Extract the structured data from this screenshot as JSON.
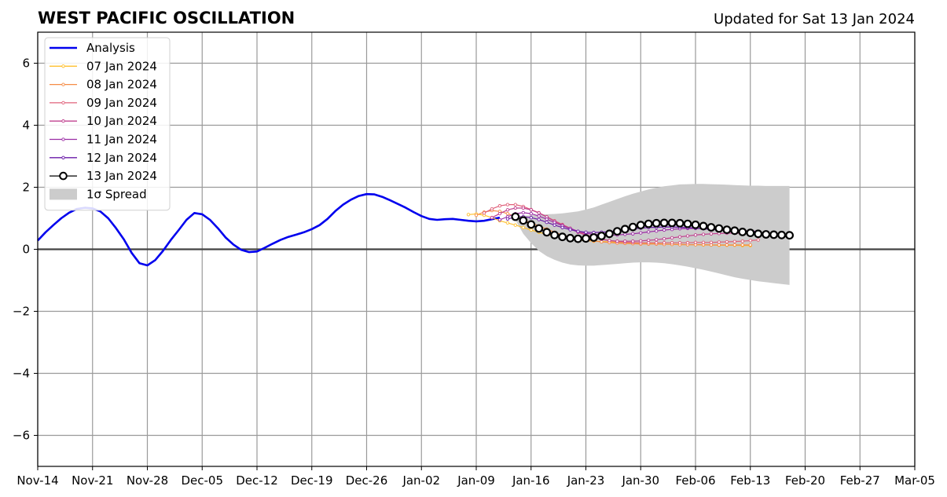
{
  "chart_data": {
    "type": "line",
    "title": "WEST PACIFIC OSCILLATION",
    "subtitle": "Updated for Sat 13 Jan 2024",
    "xlabel": "",
    "ylabel": "",
    "xlim": [
      0,
      112
    ],
    "ylim": [
      -7,
      7
    ],
    "x_ticks": [
      0,
      7,
      14,
      21,
      28,
      35,
      42,
      49,
      56,
      63,
      70,
      77,
      84,
      91,
      98,
      105,
      112
    ],
    "x_tick_labels": [
      "Nov-14",
      "Nov-21",
      "Nov-28",
      "Dec-05",
      "Dec-12",
      "Dec-19",
      "Dec-26",
      "Jan-02",
      "Jan-09",
      "Jan-16",
      "Jan-23",
      "Jan-30",
      "Feb-06",
      "Feb-13",
      "Feb-20",
      "Feb-27",
      "Mar-05"
    ],
    "y_ticks": [
      -6,
      -4,
      -2,
      0,
      2,
      4,
      6
    ],
    "y_tick_labels": [
      "−6",
      "−4",
      "−2",
      "0",
      "2",
      "4",
      "6"
    ],
    "grid": true,
    "zero_line": true,
    "legend_position": "top-left",
    "analysis": {
      "name": "Analysis",
      "color": "#0000ee",
      "x": [
        0,
        1,
        2,
        3,
        4,
        5,
        6,
        7,
        8,
        9,
        10,
        11,
        12,
        13,
        14,
        15,
        16,
        17,
        18,
        19,
        20,
        21,
        22,
        23,
        24,
        25,
        26,
        27,
        28,
        29,
        30,
        31,
        32,
        33,
        34,
        35,
        36,
        37,
        38,
        39,
        40,
        41,
        42,
        43,
        44,
        45,
        46,
        47,
        48,
        49,
        50,
        51,
        52,
        53,
        54,
        55,
        56,
        57,
        58,
        59
      ],
      "y": [
        0.28,
        0.55,
        0.78,
        1.0,
        1.18,
        1.3,
        1.34,
        1.32,
        1.22,
        1.0,
        0.68,
        0.32,
        -0.12,
        -0.45,
        -0.52,
        -0.35,
        -0.05,
        0.3,
        0.62,
        0.95,
        1.17,
        1.13,
        0.95,
        0.68,
        0.38,
        0.15,
        -0.02,
        -0.09,
        -0.07,
        0.05,
        0.18,
        0.3,
        0.4,
        0.47,
        0.55,
        0.65,
        0.78,
        0.98,
        1.23,
        1.44,
        1.6,
        1.72,
        1.78,
        1.77,
        1.69,
        1.58,
        1.46,
        1.34,
        1.2,
        1.07,
        0.98,
        0.95,
        0.97,
        0.98,
        0.95,
        0.92,
        0.9,
        0.92,
        0.97,
        1.02
      ]
    },
    "forecasts": [
      {
        "name": "07 Jan 2024",
        "color": "#ffc02e",
        "start": 55,
        "values": [
          1.12,
          1.14,
          1.1,
          1.02,
          0.92,
          0.85,
          0.78,
          0.7,
          0.62,
          0.55,
          0.48,
          0.42,
          0.38,
          0.33,
          0.3,
          0.28,
          0.26,
          0.25,
          0.24,
          0.23,
          0.22,
          0.21,
          0.2,
          0.19,
          0.18,
          0.17,
          0.16,
          0.16,
          0.15,
          0.15,
          0.14,
          0.14,
          0.13,
          0.13,
          0.13,
          0.12,
          0.12
        ]
      },
      {
        "name": "08 Jan 2024",
        "color": "#f58c45",
        "start": 56,
        "values": [
          1.1,
          1.2,
          1.25,
          1.22,
          1.15,
          1.05,
          0.95,
          0.85,
          0.75,
          0.65,
          0.55,
          0.46,
          0.4,
          0.35,
          0.3,
          0.27,
          0.24,
          0.22,
          0.2,
          0.19,
          0.18,
          0.17,
          0.17,
          0.17,
          0.16,
          0.16,
          0.15,
          0.15,
          0.15,
          0.15,
          0.14,
          0.14,
          0.14,
          0.14,
          0.14,
          0.14
        ]
      },
      {
        "name": "09 Jan 2024",
        "color": "#e0607a",
        "start": 57,
        "values": [
          1.17,
          1.3,
          1.4,
          1.44,
          1.44,
          1.38,
          1.28,
          1.18,
          1.05,
          0.92,
          0.8,
          0.68,
          0.57,
          0.47,
          0.39,
          0.33,
          0.28,
          0.25,
          0.23,
          0.22,
          0.21,
          0.21,
          0.21,
          0.21,
          0.21,
          0.21,
          0.21,
          0.22,
          0.22,
          0.22,
          0.23,
          0.24,
          0.25,
          0.26,
          0.28,
          0.3
        ]
      },
      {
        "name": "10 Jan 2024",
        "color": "#c0408f",
        "start": 58,
        "values": [
          1.02,
          1.15,
          1.27,
          1.33,
          1.33,
          1.27,
          1.17,
          1.04,
          0.9,
          0.78,
          0.66,
          0.55,
          0.45,
          0.38,
          0.32,
          0.28,
          0.26,
          0.26,
          0.26,
          0.27,
          0.29,
          0.31,
          0.34,
          0.37,
          0.4,
          0.43,
          0.46,
          0.48,
          0.5,
          0.51,
          0.52,
          0.52,
          0.52,
          0.52,
          0.51
        ]
      },
      {
        "name": "11 Jan 2024",
        "color": "#9b2ca5",
        "start": 59,
        "values": [
          0.95,
          1.05,
          1.15,
          1.18,
          1.15,
          1.07,
          0.97,
          0.86,
          0.76,
          0.67,
          0.58,
          0.52,
          0.48,
          0.46,
          0.45,
          0.46,
          0.48,
          0.5,
          0.53,
          0.56,
          0.59,
          0.62,
          0.64,
          0.66,
          0.67,
          0.67,
          0.67,
          0.66,
          0.65,
          0.63,
          0.62,
          0.6,
          0.59,
          0.58
        ]
      },
      {
        "name": "12 Jan 2024",
        "color": "#6a1aa8",
        "start": 60,
        "values": [
          0.98,
          1.03,
          1.05,
          1.02,
          0.96,
          0.87,
          0.78,
          0.7,
          0.63,
          0.58,
          0.55,
          0.54,
          0.55,
          0.57,
          0.6,
          0.63,
          0.66,
          0.68,
          0.7,
          0.71,
          0.72,
          0.72,
          0.71,
          0.7,
          0.68,
          0.66,
          0.64,
          0.62,
          0.6,
          0.58,
          0.56,
          0.55,
          0.54
        ]
      },
      {
        "name": "13 Jan 2024",
        "color": "#000000",
        "start": 61,
        "values": [
          1.05,
          0.93,
          0.8,
          0.67,
          0.55,
          0.46,
          0.4,
          0.36,
          0.34,
          0.35,
          0.38,
          0.43,
          0.5,
          0.58,
          0.65,
          0.72,
          0.78,
          0.82,
          0.84,
          0.85,
          0.85,
          0.84,
          0.82,
          0.79,
          0.75,
          0.71,
          0.67,
          0.63,
          0.6,
          0.56,
          0.53,
          0.5,
          0.48,
          0.47,
          0.46,
          0.45
        ]
      }
    ],
    "spread": {
      "name": "1σ Spread",
      "color": "#cccccc",
      "x": [
        61,
        62,
        63,
        64,
        65,
        66,
        67,
        68,
        69,
        70,
        71,
        72,
        73,
        74,
        75,
        76,
        77,
        78,
        79,
        80,
        81,
        82,
        83,
        84,
        85,
        86,
        87,
        88,
        89,
        90,
        91,
        92,
        93,
        94,
        95,
        96
      ],
      "upper": [
        1.05,
        1.08,
        1.1,
        1.12,
        1.13,
        1.14,
        1.16,
        1.19,
        1.22,
        1.28,
        1.35,
        1.44,
        1.53,
        1.62,
        1.71,
        1.79,
        1.86,
        1.93,
        1.98,
        2.03,
        2.06,
        2.09,
        2.1,
        2.11,
        2.11,
        2.1,
        2.09,
        2.08,
        2.07,
        2.06,
        2.05,
        2.05,
        2.04,
        2.04,
        2.04,
        2.04
      ],
      "lower": [
        0.95,
        0.5,
        0.2,
        -0.05,
        -0.22,
        -0.34,
        -0.43,
        -0.49,
        -0.52,
        -0.53,
        -0.53,
        -0.51,
        -0.49,
        -0.47,
        -0.45,
        -0.43,
        -0.42,
        -0.42,
        -0.43,
        -0.45,
        -0.48,
        -0.52,
        -0.56,
        -0.61,
        -0.66,
        -0.72,
        -0.78,
        -0.84,
        -0.9,
        -0.95,
        -0.99,
        -1.03,
        -1.06,
        -1.09,
        -1.12,
        -1.15
      ]
    }
  }
}
